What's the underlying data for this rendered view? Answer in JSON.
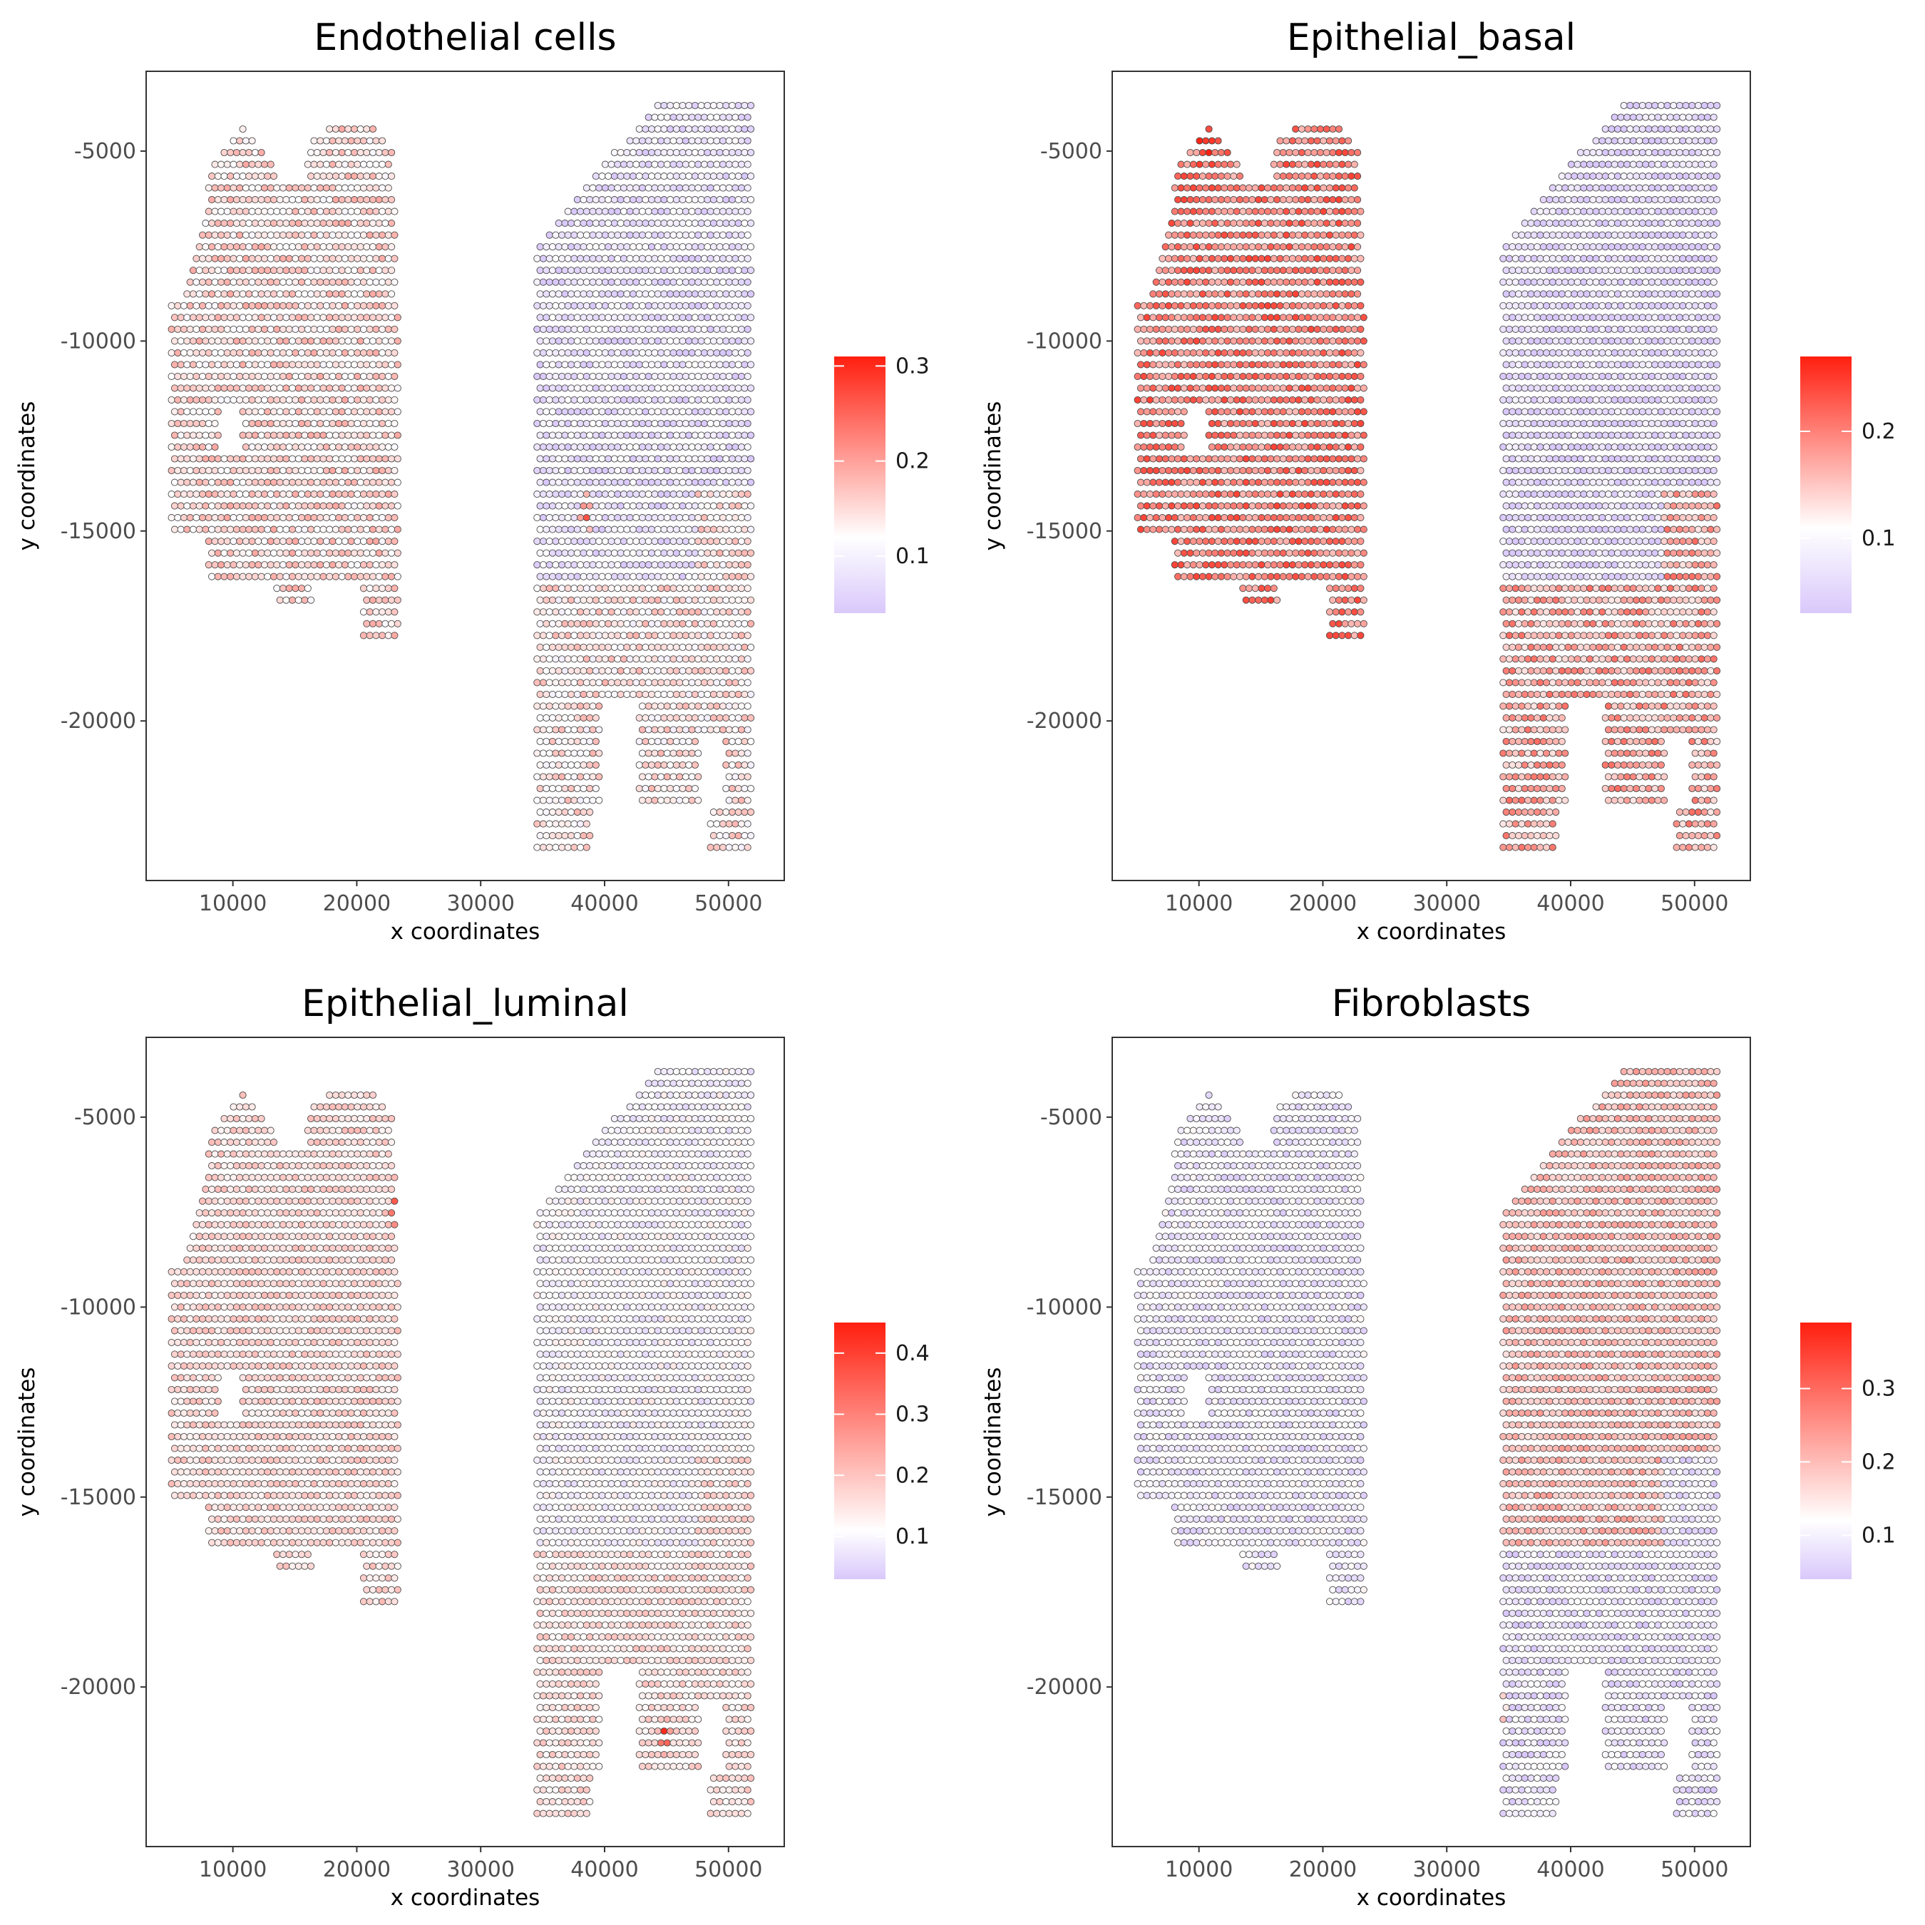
{
  "colors": {
    "low": "#d9c8fb",
    "mid": "#ffffff",
    "high": "#ff1f0f",
    "outline": "#4a4a4a",
    "panel_border": "#333333"
  },
  "chart_data": [
    {
      "type": "scatter",
      "title": "Endothelial cells",
      "xlabel": "x coordinates",
      "ylabel": "y coordinates",
      "xlim": [
        3000,
        54500
      ],
      "ylim": [
        -24200,
        -2900
      ],
      "x_ticks": [
        10000,
        20000,
        30000,
        40000,
        50000
      ],
      "x_tick_labels": [
        "10000",
        "20000",
        "30000",
        "40000",
        "50000"
      ],
      "y_ticks": [
        -5000,
        -10000,
        -15000,
        -20000
      ],
      "y_tick_labels": [
        "-5000",
        "-10000",
        "-15000",
        "-20000"
      ],
      "colorbar": {
        "min": 0.04,
        "max": 0.31,
        "mid": 0.12,
        "ticks": [
          0.1,
          0.2,
          0.3
        ],
        "tick_labels": [
          "0.1",
          "0.2",
          "0.3"
        ]
      },
      "pattern": {
        "left_level": 0.15,
        "right_level": 0.08,
        "lower_right_level": 0.14,
        "hotspots": [
          [
            38500,
            -14500,
            0.31
          ]
        ]
      }
    },
    {
      "type": "scatter",
      "title": "Epithelial_basal",
      "xlabel": "x coordinates",
      "ylabel": "y coordinates",
      "xlim": [
        3000,
        54500
      ],
      "ylim": [
        -24200,
        -2900
      ],
      "x_ticks": [
        10000,
        20000,
        30000,
        40000,
        50000
      ],
      "x_tick_labels": [
        "10000",
        "20000",
        "30000",
        "40000",
        "50000"
      ],
      "y_ticks": [
        -5000,
        -10000,
        -15000,
        -20000
      ],
      "y_tick_labels": [
        "-5000",
        "-10000",
        "-15000",
        "-20000"
      ],
      "colorbar": {
        "min": 0.03,
        "max": 0.27,
        "mid": 0.11,
        "ticks": [
          0.1,
          0.2
        ],
        "tick_labels": [
          "0.1",
          "0.2"
        ]
      },
      "pattern": {
        "left_level": 0.2,
        "right_level": 0.05,
        "lower_right_level": 0.17,
        "hotspots": [
          [
            10500,
            -4800,
            0.27
          ]
        ]
      }
    },
    {
      "type": "scatter",
      "title": "Epithelial_luminal",
      "xlabel": "x coordinates",
      "ylabel": "y coordinates",
      "xlim": [
        3000,
        54500
      ],
      "ylim": [
        -24200,
        -2900
      ],
      "x_ticks": [
        10000,
        20000,
        30000,
        40000,
        50000
      ],
      "x_tick_labels": [
        "10000",
        "20000",
        "30000",
        "40000",
        "50000"
      ],
      "y_ticks": [
        -5000,
        -10000,
        -15000,
        -20000
      ],
      "y_tick_labels": [
        "-5000",
        "-10000",
        "-15000",
        "-20000"
      ],
      "colorbar": {
        "min": 0.03,
        "max": 0.45,
        "mid": 0.11,
        "ticks": [
          0.1,
          0.2,
          0.3,
          0.4
        ],
        "tick_labels": [
          "0.1",
          "0.2",
          "0.3",
          "0.4"
        ]
      },
      "pattern": {
        "left_level": 0.17,
        "right_level": 0.1,
        "lower_right_level": 0.16,
        "hotspots": [
          [
            23200,
            -7400,
            0.42
          ],
          [
            44800,
            -21300,
            0.43
          ]
        ]
      }
    },
    {
      "type": "scatter",
      "title": "Fibroblasts",
      "xlabel": "x coordinates",
      "ylabel": "y coordinates",
      "xlim": [
        3000,
        54500
      ],
      "ylim": [
        -24200,
        -2900
      ],
      "x_ticks": [
        10000,
        20000,
        30000,
        40000,
        50000
      ],
      "x_tick_labels": [
        "10000",
        "20000",
        "30000",
        "40000",
        "50000"
      ],
      "y_ticks": [
        -5000,
        -10000,
        -15000,
        -20000
      ],
      "y_tick_labels": [
        "-5000",
        "-10000",
        "-15000",
        "-20000"
      ],
      "colorbar": {
        "min": 0.04,
        "max": 0.39,
        "mid": 0.12,
        "ticks": [
          0.1,
          0.2,
          0.3
        ],
        "tick_labels": [
          "0.1",
          "0.2",
          "0.3"
        ]
      },
      "pattern": {
        "left_level": 0.09,
        "right_level": 0.2,
        "lower_right_level": 0.08,
        "hotspots": [
          [
            34200,
            -20500,
            0.39
          ]
        ]
      }
    }
  ]
}
